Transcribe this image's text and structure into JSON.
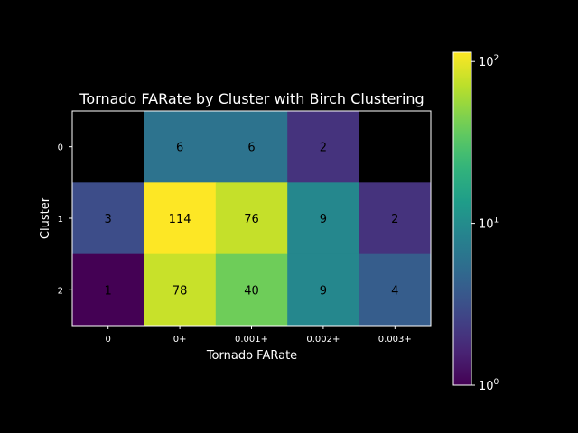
{
  "chart_data": {
    "type": "heatmap",
    "title": "Tornado FARate by Cluster with Birch Clustering",
    "xlabel": "Tornado FARate",
    "ylabel": "Cluster",
    "x_categories": [
      "0",
      "0+",
      "0.001+",
      "0.002+",
      "0.003+"
    ],
    "y_categories": [
      "0",
      "1",
      "2"
    ],
    "values": [
      [
        null,
        6,
        6,
        2,
        null
      ],
      [
        3,
        114,
        76,
        9,
        2
      ],
      [
        1,
        78,
        40,
        9,
        4
      ]
    ],
    "colorscale": "viridis",
    "color_scale_type": "log",
    "color_range": [
      1,
      114
    ],
    "colorbar": {
      "ticks": [
        {
          "value": 1,
          "base": "10",
          "exp": "0"
        },
        {
          "value": 10,
          "base": "10",
          "exp": "1"
        },
        {
          "value": 100,
          "base": "10",
          "exp": "2"
        }
      ]
    },
    "missing_color": "#000000",
    "grid": false
  }
}
